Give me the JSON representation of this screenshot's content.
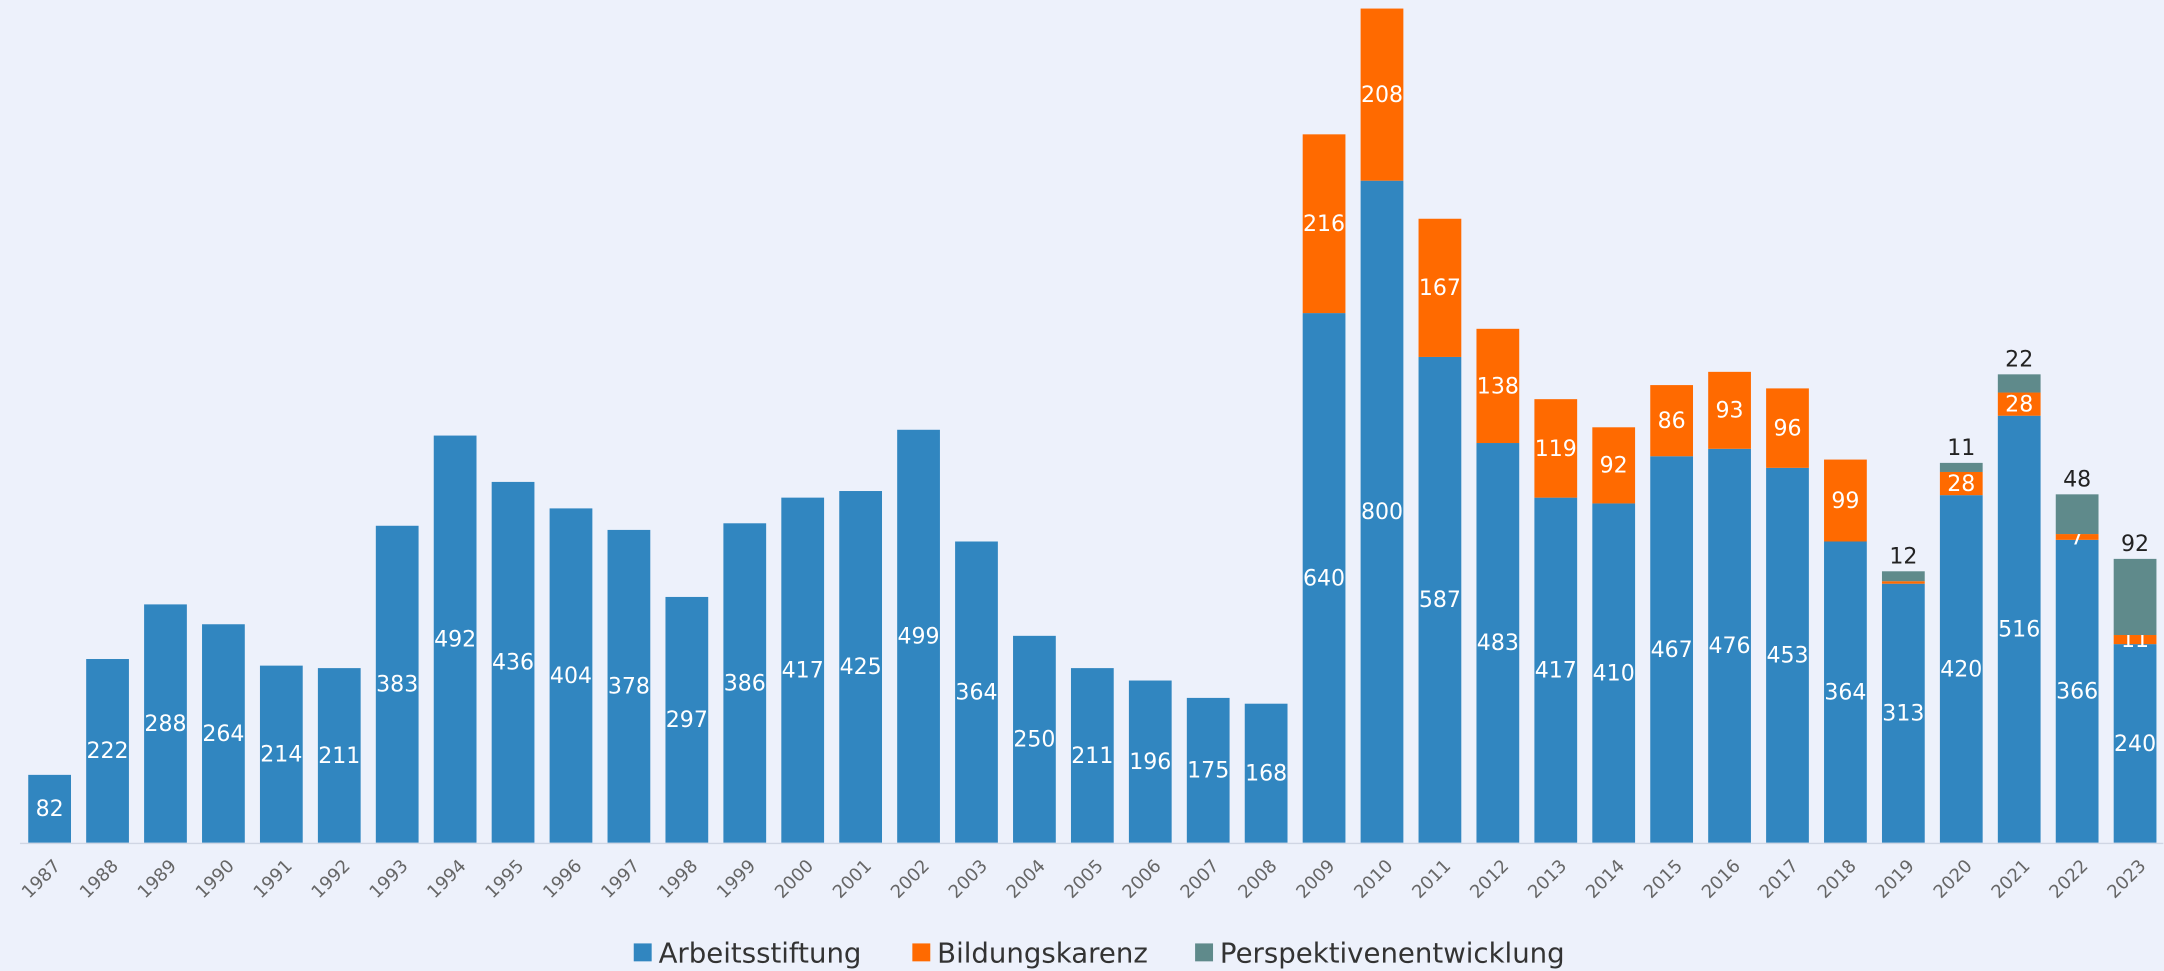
{
  "chart_data": {
    "type": "stacked-bar",
    "categories": [
      "1987",
      "1988",
      "1989",
      "1990",
      "1991",
      "1992",
      "1993",
      "1994",
      "1995",
      "1996",
      "1997",
      "1998",
      "1999",
      "2000",
      "2001",
      "2002",
      "2003",
      "2004",
      "2005",
      "2006",
      "2007",
      "2008",
      "2009",
      "2010",
      "2011",
      "2012",
      "2013",
      "2014",
      "2015",
      "2016",
      "2017",
      "2018",
      "2019",
      "2020",
      "2021",
      "2022",
      "2023"
    ],
    "series": [
      {
        "name": "Arbeitsstiftung",
        "color": "#3186c0",
        "values": [
          82,
          222,
          288,
          264,
          214,
          211,
          383,
          492,
          436,
          404,
          378,
          297,
          386,
          417,
          425,
          499,
          364,
          250,
          211,
          196,
          175,
          168,
          640,
          800,
          587,
          483,
          417,
          410,
          467,
          476,
          453,
          364,
          313,
          420,
          516,
          366,
          240
        ]
      },
      {
        "name": "Bildungskarenz",
        "color": "#ff6a00",
        "values": [
          null,
          null,
          null,
          null,
          null,
          null,
          null,
          null,
          null,
          null,
          null,
          null,
          null,
          null,
          null,
          null,
          null,
          null,
          null,
          null,
          null,
          null,
          216,
          208,
          167,
          138,
          119,
          92,
          86,
          93,
          96,
          99,
          3,
          28,
          28,
          7,
          11
        ]
      },
      {
        "name": "Perspektivenentwicklung",
        "color": "#5f8a8b",
        "values": [
          null,
          null,
          null,
          null,
          null,
          null,
          null,
          null,
          null,
          null,
          null,
          null,
          null,
          null,
          null,
          null,
          null,
          null,
          null,
          null,
          null,
          null,
          null,
          null,
          null,
          null,
          null,
          null,
          null,
          null,
          null,
          null,
          12,
          11,
          22,
          48,
          92
        ]
      }
    ],
    "ylim": [
      0,
      1000
    ],
    "legend": "bottom"
  }
}
